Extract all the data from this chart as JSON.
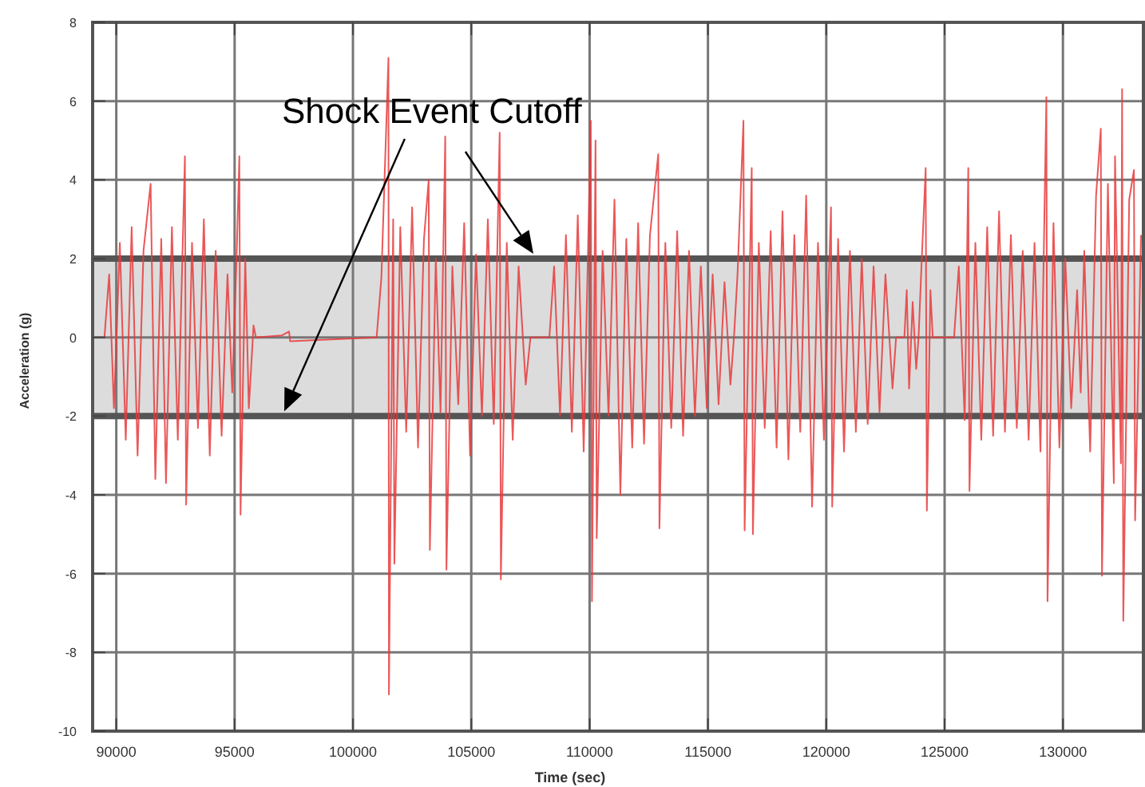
{
  "chart_data": {
    "type": "line",
    "xlabel": "Time (sec)",
    "ylabel": "Acceleration (g)",
    "xlim": [
      89000,
      133400
    ],
    "xticks": [
      90000,
      95000,
      100000,
      105000,
      110000,
      115000,
      120000,
      125000,
      130000
    ],
    "ylim": [
      -10,
      8
    ],
    "yticks": [
      -10,
      -8,
      -6,
      -4,
      -2,
      0,
      2,
      4,
      6,
      8
    ],
    "grid": true,
    "marker": "none",
    "line_style": "solid",
    "bands": [
      {
        "axis": "y",
        "from": -2,
        "to": 2,
        "label": "Shock Event Cutoff",
        "color": "#dcdcdc"
      }
    ],
    "series": [
      {
        "color": "#e8393b",
        "x": [
          89500,
          89700,
          89900,
          90150,
          90400,
          90650,
          90900,
          91150,
          91450,
          91650,
          91900,
          92100,
          92350,
          92600,
          92900,
          92950,
          93200,
          93450,
          93700,
          93950,
          94200,
          94450,
          94700,
          94900,
          95100,
          95200,
          95250,
          95450,
          95600,
          95800,
          95900,
          97000,
          97300,
          97350,
          101000,
          101200,
          101500,
          101520,
          101700,
          101750,
          102000,
          102250,
          102500,
          102750,
          103000,
          103200,
          103250,
          103500,
          103700,
          103900,
          103950,
          104200,
          104450,
          104700,
          104950,
          105200,
          105450,
          105700,
          105950,
          106200,
          106250,
          106500,
          106750,
          107000,
          107300,
          107500,
          108300,
          108500,
          108750,
          109000,
          109250,
          109500,
          109750,
          110050,
          110100,
          110250,
          110300,
          110550,
          110800,
          111050,
          111300,
          111550,
          111800,
          112050,
          112300,
          112550,
          112900,
          112950,
          113200,
          113450,
          113700,
          113950,
          114200,
          114450,
          114700,
          114950,
          115200,
          115450,
          115700,
          115950,
          116100,
          116250,
          116500,
          116550,
          116850,
          116900,
          117150,
          117400,
          117650,
          117900,
          118150,
          118400,
          118650,
          118900,
          119150,
          119400,
          119650,
          119900,
          120200,
          120250,
          120500,
          120750,
          121000,
          121250,
          121500,
          121750,
          122000,
          122250,
          122500,
          122800,
          122950,
          123300,
          123400,
          123500,
          123650,
          123800,
          123900,
          124000,
          124200,
          124250,
          124400,
          124500,
          125400,
          125600,
          125850,
          126000,
          126050,
          126300,
          126550,
          126800,
          127050,
          127300,
          127550,
          127800,
          128050,
          128300,
          128550,
          128800,
          129050,
          129300,
          129350,
          129600,
          129850,
          130100,
          130350,
          130600,
          130750,
          130900,
          131150,
          131400,
          131600,
          131650,
          131900,
          132150,
          132200,
          132450,
          132500,
          132550,
          132800,
          133000,
          133050,
          133300
        ],
        "values": [
          0,
          1.6,
          -1.8,
          2.4,
          -2.6,
          2.8,
          -3.0,
          2.2,
          3.9,
          -3.6,
          2.5,
          -3.7,
          2.8,
          -2.6,
          4.6,
          -4.25,
          2.4,
          -2.3,
          3.0,
          -3.0,
          2.2,
          -2.5,
          1.6,
          -1.4,
          2.4,
          4.6,
          -4.5,
          2.0,
          -1.8,
          0.3,
          0,
          0.05,
          0.15,
          -0.1,
          0,
          1.5,
          7.1,
          -9.07,
          3.0,
          -5.75,
          2.8,
          -2.4,
          3.3,
          -2.8,
          2.5,
          4.0,
          -5.4,
          2.0,
          -1.9,
          5.1,
          -5.9,
          1.8,
          -1.7,
          2.9,
          -3.0,
          2.1,
          -2.0,
          3.0,
          -2.2,
          5.2,
          -6.15,
          2.4,
          -2.6,
          1.8,
          -1.2,
          0,
          0,
          1.8,
          -2.0,
          2.6,
          -2.4,
          3.1,
          -2.9,
          5.5,
          -6.7,
          5.0,
          -5.1,
          2.2,
          -2.0,
          3.5,
          -4.0,
          2.5,
          -2.8,
          2.9,
          -2.7,
          2.6,
          4.65,
          -4.85,
          2.4,
          -2.3,
          2.7,
          -2.5,
          2.2,
          -2.0,
          1.8,
          -1.8,
          1.6,
          -1.7,
          1.4,
          -1.2,
          0,
          1.6,
          5.5,
          -4.9,
          4.3,
          -5.0,
          2.4,
          -2.3,
          2.7,
          -2.8,
          3.2,
          -3.1,
          2.6,
          -2.4,
          3.6,
          -4.3,
          2.4,
          -2.6,
          3.3,
          -4.3,
          2.5,
          -2.9,
          2.2,
          -2.4,
          2.0,
          -2.2,
          1.8,
          -1.9,
          1.6,
          -1.3,
          0,
          0,
          1.2,
          -1.3,
          0.9,
          -0.8,
          0,
          1.5,
          4.3,
          -4.4,
          1.2,
          0,
          0,
          1.8,
          -2.1,
          4.3,
          -3.9,
          2.4,
          -2.6,
          2.8,
          -2.5,
          3.2,
          -2.4,
          2.6,
          -2.3,
          2.2,
          -2.6,
          2.4,
          -2.9,
          6.1,
          -6.7,
          2.9,
          -2.8,
          2.0,
          -1.8,
          1.2,
          -1.4,
          2.2,
          -2.9,
          3.6,
          5.3,
          -6.05,
          3.9,
          -3.7,
          4.6,
          -3.2,
          6.3,
          -7.2,
          3.5,
          4.25,
          -4.65,
          2.6
        ]
      }
    ]
  }
}
